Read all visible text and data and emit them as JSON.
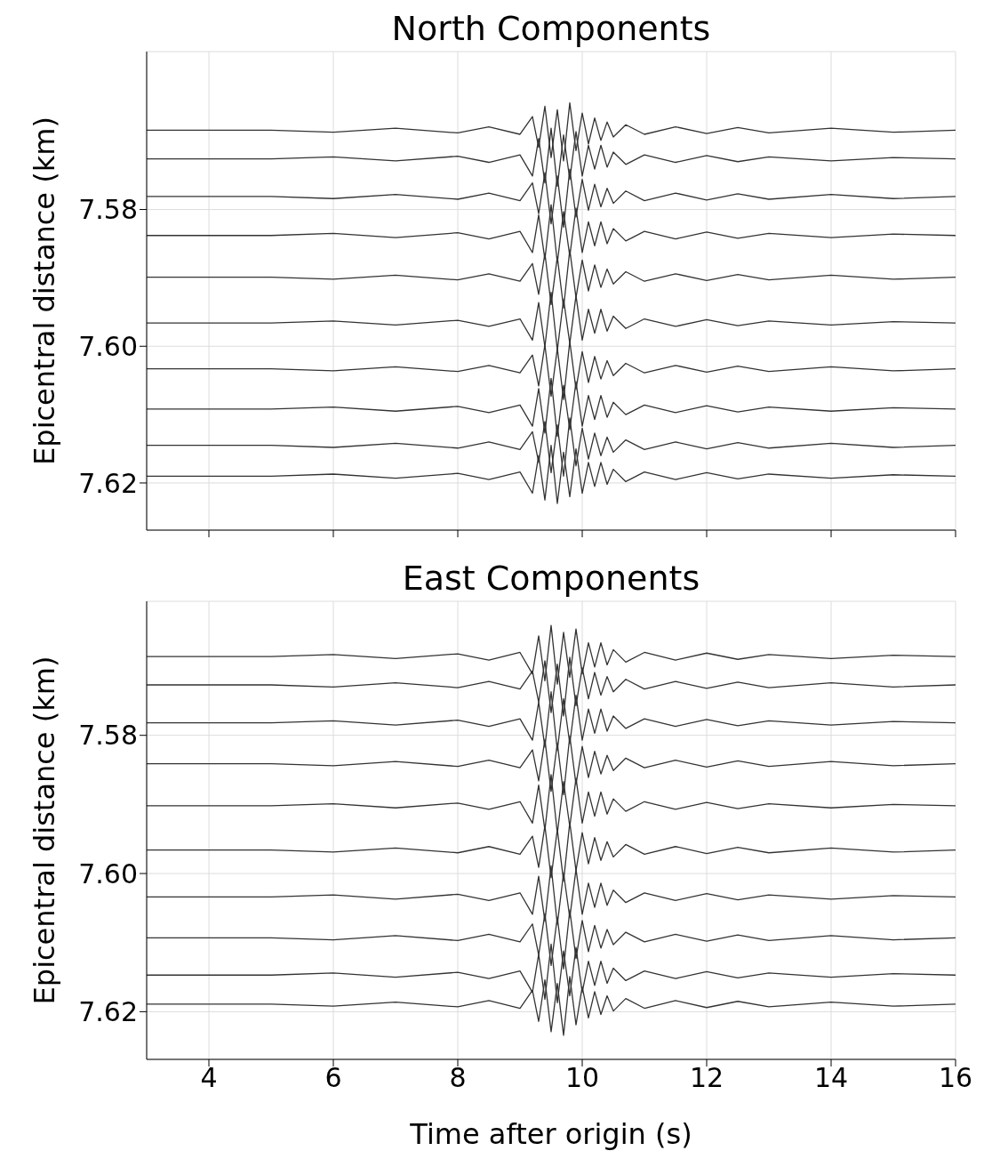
{
  "chart_data": [
    {
      "type": "line",
      "title": "North Components",
      "ylabel": "Epicentral distance (km)",
      "xlim": [
        3,
        16
      ],
      "xticks": [
        4,
        6,
        8,
        10,
        12,
        14,
        16
      ],
      "ylim": [
        7.6269,
        7.5569
      ],
      "yticks": [
        {
          "value": 7.58,
          "label": "7.58"
        },
        {
          "value": 7.6,
          "label": "7.60"
        },
        {
          "value": 7.62,
          "label": "7.62"
        }
      ],
      "grid": true,
      "tick_labels": "y",
      "x": [
        3,
        5,
        6,
        7,
        8,
        8.5,
        9,
        9.2,
        9.3,
        9.4,
        9.5,
        9.6,
        9.7,
        9.8,
        9.9,
        10,
        10.1,
        10.2,
        10.3,
        10.4,
        10.5,
        10.7,
        11,
        11.5,
        12,
        12.5,
        13,
        14,
        15,
        16
      ],
      "series": [
        {
          "color": "#333333",
          "values": [
            7.5684,
            7.5684,
            7.5687,
            7.5681,
            7.5688,
            7.5679,
            7.569,
            7.5664,
            7.5709,
            7.5649,
            7.5724,
            7.5654,
            7.5729,
            7.5644,
            7.5714,
            7.5659,
            7.5704,
            7.5666,
            7.5699,
            7.5672,
            7.5694,
            7.5676,
            7.569,
            7.5679,
            7.5689,
            7.568,
            7.5688,
            7.5681,
            7.5687,
            7.5684
          ]
        },
        {
          "color": "#333333",
          "values": [
            7.5726,
            7.5726,
            7.5723,
            7.5729,
            7.5722,
            7.5731,
            7.572,
            7.5751,
            7.5696,
            7.5761,
            7.5681,
            7.5766,
            7.5691,
            7.5756,
            7.5686,
            7.5751,
            7.5706,
            7.5741,
            7.5706,
            7.5738,
            7.5716,
            7.5734,
            7.572,
            7.5731,
            7.5721,
            7.573,
            7.5723,
            7.5729,
            7.5724,
            7.5726
          ]
        },
        {
          "color": "#333333",
          "values": [
            7.5781,
            7.5781,
            7.5784,
            7.5778,
            7.5785,
            7.5776,
            7.5787,
            7.5761,
            7.5806,
            7.5746,
            7.5821,
            7.5751,
            7.5826,
            7.5741,
            7.5811,
            7.5756,
            7.5801,
            7.5763,
            7.5796,
            7.5769,
            7.5791,
            7.5773,
            7.5787,
            7.5776,
            7.5786,
            7.5777,
            7.5785,
            7.5778,
            7.5784,
            7.5781
          ]
        },
        {
          "color": "#333333",
          "values": [
            7.5838,
            7.5838,
            7.5835,
            7.5841,
            7.5834,
            7.5843,
            7.5832,
            7.5863,
            7.5808,
            7.5873,
            7.5793,
            7.5878,
            7.5803,
            7.5868,
            7.5798,
            7.5863,
            7.5818,
            7.5853,
            7.5818,
            7.585,
            7.5828,
            7.5846,
            7.5832,
            7.5843,
            7.5833,
            7.5842,
            7.5835,
            7.5841,
            7.5836,
            7.5838
          ]
        },
        {
          "color": "#333333",
          "values": [
            7.5899,
            7.5899,
            7.5902,
            7.5896,
            7.5903,
            7.5894,
            7.5905,
            7.5879,
            7.5924,
            7.5864,
            7.5939,
            7.5869,
            7.5944,
            7.5859,
            7.5929,
            7.5874,
            7.5919,
            7.5881,
            7.5914,
            7.5887,
            7.5909,
            7.5891,
            7.5905,
            7.5894,
            7.5904,
            7.5895,
            7.5903,
            7.5896,
            7.5902,
            7.5899
          ]
        },
        {
          "color": "#333333",
          "values": [
            7.5966,
            7.5966,
            7.5963,
            7.5969,
            7.5962,
            7.5971,
            7.596,
            7.5991,
            7.5936,
            7.6001,
            7.5921,
            7.6006,
            7.5931,
            7.5996,
            7.5926,
            7.5991,
            7.5946,
            7.5981,
            7.5946,
            7.5978,
            7.5956,
            7.5974,
            7.596,
            7.5971,
            7.5961,
            7.597,
            7.5963,
            7.5969,
            7.5964,
            7.5966
          ]
        },
        {
          "color": "#333333",
          "values": [
            7.6033,
            7.6033,
            7.6036,
            7.603,
            7.6037,
            7.6028,
            7.6039,
            7.6013,
            7.6058,
            7.5998,
            7.6073,
            7.6003,
            7.6078,
            7.5993,
            7.6063,
            7.6008,
            7.6053,
            7.6015,
            7.6048,
            7.6021,
            7.6043,
            7.6025,
            7.6039,
            7.6028,
            7.6038,
            7.6029,
            7.6037,
            7.603,
            7.6036,
            7.6033
          ]
        },
        {
          "color": "#333333",
          "values": [
            7.6092,
            7.6092,
            7.6089,
            7.6095,
            7.6088,
            7.6097,
            7.6086,
            7.6117,
            7.6062,
            7.6127,
            7.6047,
            7.6132,
            7.6057,
            7.6122,
            7.6052,
            7.6117,
            7.6072,
            7.6107,
            7.6072,
            7.6104,
            7.6082,
            7.61,
            7.6086,
            7.6097,
            7.6087,
            7.6096,
            7.6089,
            7.6095,
            7.609,
            7.6092
          ]
        },
        {
          "color": "#333333",
          "values": [
            7.6145,
            7.6145,
            7.6148,
            7.6142,
            7.6149,
            7.614,
            7.6151,
            7.6125,
            7.617,
            7.611,
            7.6185,
            7.6115,
            7.619,
            7.6105,
            7.6175,
            7.612,
            7.6165,
            7.6127,
            7.616,
            7.6133,
            7.6155,
            7.6137,
            7.6151,
            7.614,
            7.615,
            7.6141,
            7.6149,
            7.6142,
            7.6148,
            7.6145
          ]
        },
        {
          "color": "#333333",
          "values": [
            7.619,
            7.619,
            7.6187,
            7.6193,
            7.6186,
            7.6195,
            7.6184,
            7.6215,
            7.616,
            7.6225,
            7.6145,
            7.623,
            7.6155,
            7.622,
            7.615,
            7.6215,
            7.617,
            7.6205,
            7.617,
            7.6202,
            7.618,
            7.6198,
            7.6184,
            7.6195,
            7.6185,
            7.6194,
            7.6187,
            7.6193,
            7.6188,
            7.619
          ]
        }
      ]
    },
    {
      "type": "line",
      "title": "East Components",
      "xlabel": "Time after origin (s)",
      "ylabel": "Epicentral distance (km)",
      "xlim": [
        3,
        16
      ],
      "xticks": [
        4,
        6,
        8,
        10,
        12,
        14,
        16
      ],
      "ylim": [
        7.6269,
        7.5606
      ],
      "yticks": [
        {
          "value": 7.58,
          "label": "7.58"
        },
        {
          "value": 7.6,
          "label": "7.60"
        },
        {
          "value": 7.62,
          "label": "7.62"
        }
      ],
      "grid": true,
      "x": [
        3,
        5,
        6,
        7,
        8,
        8.5,
        9,
        9.2,
        9.3,
        9.4,
        9.5,
        9.6,
        9.7,
        9.8,
        9.9,
        10,
        10.1,
        10.2,
        10.3,
        10.4,
        10.5,
        10.7,
        11,
        11.5,
        12,
        12.5,
        13,
        14,
        15,
        16
      ],
      "series": [
        {
          "color": "#333333",
          "values": [
            7.5686,
            7.5686,
            7.5683,
            7.5689,
            7.5682,
            7.5691,
            7.568,
            7.5711,
            7.5656,
            7.5721,
            7.5641,
            7.5726,
            7.5651,
            7.5716,
            7.5646,
            7.5711,
            7.5666,
            7.5701,
            7.5666,
            7.5698,
            7.5676,
            7.5694,
            7.568,
            7.5691,
            7.5681,
            7.569,
            7.5683,
            7.5689,
            7.5684,
            7.5686
          ]
        },
        {
          "color": "#333333",
          "values": [
            7.5727,
            7.5727,
            7.573,
            7.5724,
            7.5731,
            7.5722,
            7.5733,
            7.5707,
            7.5752,
            7.5692,
            7.5767,
            7.5697,
            7.5772,
            7.5687,
            7.5757,
            7.5702,
            7.5747,
            7.5709,
            7.5742,
            7.5715,
            7.5737,
            7.5719,
            7.5733,
            7.5722,
            7.5732,
            7.5723,
            7.5731,
            7.5724,
            7.573,
            7.5727
          ]
        },
        {
          "color": "#333333",
          "values": [
            7.5782,
            7.5782,
            7.5779,
            7.5785,
            7.5778,
            7.5787,
            7.5776,
            7.5807,
            7.5752,
            7.5817,
            7.5737,
            7.5822,
            7.5747,
            7.5812,
            7.5742,
            7.5807,
            7.5762,
            7.5797,
            7.5762,
            7.5794,
            7.5772,
            7.579,
            7.5776,
            7.5787,
            7.5777,
            7.5786,
            7.5779,
            7.5785,
            7.578,
            7.5782
          ]
        },
        {
          "color": "#333333",
          "values": [
            7.5841,
            7.5841,
            7.5844,
            7.5838,
            7.5845,
            7.5836,
            7.5847,
            7.5821,
            7.5866,
            7.5806,
            7.5881,
            7.5811,
            7.5886,
            7.5801,
            7.5871,
            7.5816,
            7.5861,
            7.5823,
            7.5856,
            7.5829,
            7.5851,
            7.5833,
            7.5847,
            7.5836,
            7.5846,
            7.5837,
            7.5845,
            7.5838,
            7.5844,
            7.5841
          ]
        },
        {
          "color": "#333333",
          "values": [
            7.5902,
            7.5902,
            7.5899,
            7.5905,
            7.5898,
            7.5907,
            7.5896,
            7.5927,
            7.5872,
            7.5937,
            7.5857,
            7.5942,
            7.5867,
            7.5932,
            7.5862,
            7.5927,
            7.5882,
            7.5917,
            7.5882,
            7.5914,
            7.5892,
            7.591,
            7.5896,
            7.5907,
            7.5897,
            7.5906,
            7.5899,
            7.5905,
            7.59,
            7.5902
          ]
        },
        {
          "color": "#333333",
          "values": [
            7.5966,
            7.5966,
            7.5969,
            7.5963,
            7.597,
            7.5961,
            7.5972,
            7.5946,
            7.5991,
            7.5931,
            7.6006,
            7.5936,
            7.6011,
            7.5926,
            7.5996,
            7.5941,
            7.5986,
            7.5948,
            7.5981,
            7.5954,
            7.5976,
            7.5958,
            7.5972,
            7.5961,
            7.5971,
            7.5962,
            7.597,
            7.5963,
            7.5969,
            7.5966
          ]
        },
        {
          "color": "#333333",
          "values": [
            7.6034,
            7.6034,
            7.6031,
            7.6037,
            7.603,
            7.6039,
            7.6028,
            7.6059,
            7.6004,
            7.6069,
            7.5989,
            7.6074,
            7.5999,
            7.6064,
            7.5994,
            7.6059,
            7.6014,
            7.6049,
            7.6014,
            7.6046,
            7.6024,
            7.6042,
            7.6028,
            7.6039,
            7.6029,
            7.6038,
            7.6031,
            7.6037,
            7.6032,
            7.6034
          ]
        },
        {
          "color": "#333333",
          "values": [
            7.6093,
            7.6093,
            7.6096,
            7.609,
            7.6097,
            7.6088,
            7.6099,
            7.6073,
            7.6118,
            7.6058,
            7.6133,
            7.6063,
            7.6138,
            7.6053,
            7.6123,
            7.6068,
            7.6113,
            7.6075,
            7.6108,
            7.6081,
            7.6103,
            7.6085,
            7.6099,
            7.6088,
            7.6098,
            7.6089,
            7.6097,
            7.609,
            7.6096,
            7.6093
          ]
        },
        {
          "color": "#333333",
          "values": [
            7.6147,
            7.6147,
            7.6144,
            7.615,
            7.6143,
            7.6152,
            7.6141,
            7.6172,
            7.6117,
            7.6182,
            7.6102,
            7.6187,
            7.6112,
            7.6177,
            7.6107,
            7.6172,
            7.6127,
            7.6162,
            7.6127,
            7.6159,
            7.6137,
            7.6155,
            7.6141,
            7.6152,
            7.6142,
            7.6151,
            7.6144,
            7.615,
            7.6145,
            7.6147
          ]
        },
        {
          "color": "#333333",
          "values": [
            7.6189,
            7.6189,
            7.6192,
            7.6186,
            7.6193,
            7.6184,
            7.6195,
            7.6169,
            7.6214,
            7.6154,
            7.6229,
            7.6159,
            7.6234,
            7.6149,
            7.6219,
            7.6164,
            7.6209,
            7.6171,
            7.6204,
            7.6177,
            7.6199,
            7.6181,
            7.6195,
            7.6184,
            7.6194,
            7.6185,
            7.6193,
            7.6186,
            7.6192,
            7.6189
          ]
        }
      ]
    }
  ]
}
